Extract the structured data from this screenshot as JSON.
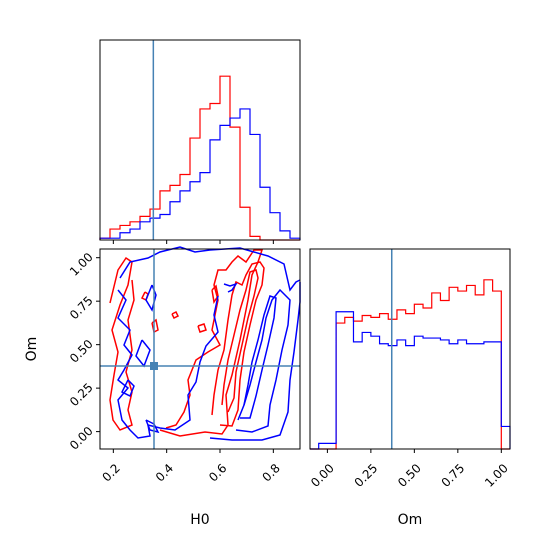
{
  "chart_data": [
    {
      "type": "histogram",
      "panel": "H0 marginal",
      "x_range": [
        0.15,
        0.9
      ],
      "bins": [
        0.15,
        0.1875,
        0.225,
        0.2625,
        0.3,
        0.3375,
        0.375,
        0.4125,
        0.45,
        0.4875,
        0.525,
        0.5625,
        0.6,
        0.6375,
        0.675,
        0.7125,
        0.75,
        0.7875,
        0.825,
        0.8625,
        0.9
      ],
      "series": [
        {
          "color": "#ff0000",
          "counts": [
            0.01,
            0.06,
            0.08,
            0.1,
            0.13,
            0.17,
            0.27,
            0.3,
            0.36,
            0.56,
            0.72,
            0.75,
            0.9,
            0.62,
            0.18,
            0.02,
            0,
            0,
            0,
            0
          ]
        },
        {
          "color": "#0000ff",
          "counts": [
            0.01,
            0.01,
            0.04,
            0.06,
            0.1,
            0.12,
            0.14,
            0.21,
            0.27,
            0.32,
            0.37,
            0.55,
            0.63,
            0.67,
            0.72,
            0.58,
            0.29,
            0.15,
            0.05,
            0.01
          ]
        }
      ],
      "truth_line": 0.35,
      "yaxis_ticks": false
    },
    {
      "type": "contour",
      "panel": "H0 vs Om joint",
      "xlabel": "H0",
      "ylabel": "Om",
      "xlim": [
        0.15,
        0.9
      ],
      "ylim": [
        -0.1,
        1.05
      ],
      "xticks": [
        "0.2",
        "0.4",
        "0.6",
        "0.8"
      ],
      "yticks": [
        "0.00",
        "0.25",
        "0.50",
        "0.75",
        "1.00"
      ],
      "truth_point": [
        0.35,
        0.37
      ],
      "truth_color": "#4682b4"
    },
    {
      "type": "histogram",
      "panel": "Om marginal",
      "xlabel": "Om",
      "x_range": [
        -0.1,
        1.05
      ],
      "xticks": [
        "0.00",
        "0.25",
        "0.50",
        "0.75",
        "1.00"
      ],
      "bins": [
        -0.1,
        -0.05,
        0.0,
        0.05,
        0.1,
        0.15,
        0.2,
        0.25,
        0.3,
        0.35,
        0.4,
        0.45,
        0.5,
        0.55,
        0.6,
        0.65,
        0.7,
        0.75,
        0.8,
        0.85,
        0.9,
        0.95,
        1.0,
        1.05
      ],
      "series": [
        {
          "color": "#ff0000",
          "counts": [
            0,
            0,
            0,
            0.67,
            0.7,
            0.68,
            0.71,
            0.7,
            0.72,
            0.69,
            0.74,
            0.72,
            0.77,
            0.75,
            0.83,
            0.79,
            0.86,
            0.84,
            0.87,
            0.82,
            0.9,
            0.84,
            0
          ]
        },
        {
          "color": "#0000ff",
          "counts": [
            0,
            0.03,
            0.03,
            0.73,
            0.73,
            0.57,
            0.62,
            0.6,
            0.56,
            0.55,
            0.58,
            0.55,
            0.6,
            0.59,
            0.59,
            0.58,
            0.56,
            0.58,
            0.56,
            0.56,
            0.57,
            0.57,
            0.12
          ]
        }
      ],
      "truth_line": 0.37,
      "yaxis_ticks": false
    }
  ]
}
